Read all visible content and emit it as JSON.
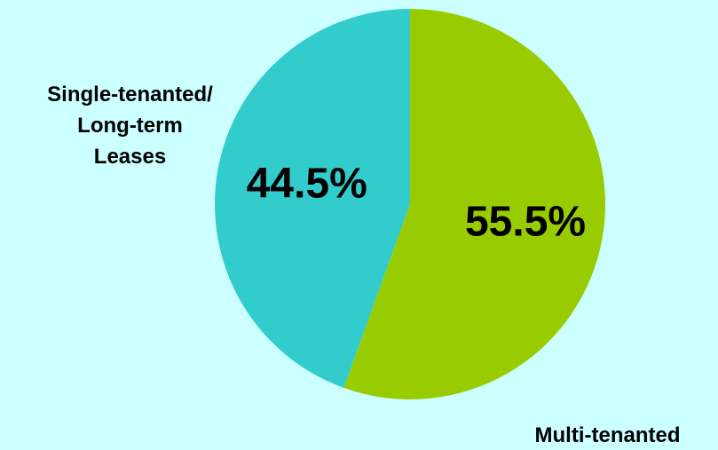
{
  "chart_data": {
    "type": "pie",
    "categories": [
      "Single-tenanted/ Long-term Leases",
      "Multi-tenanted"
    ],
    "values": [
      44.5,
      55.5
    ],
    "value_labels": [
      "44.5%",
      "55.5%"
    ],
    "colors": [
      "#33cccc",
      "#99cc00"
    ],
    "label_lines": [
      [
        "Single-tenanted/",
        "Long-term",
        "Leases"
      ],
      [
        "Multi-tenanted"
      ]
    ],
    "title": "",
    "legend": "none"
  },
  "background_color": "#ccffff"
}
